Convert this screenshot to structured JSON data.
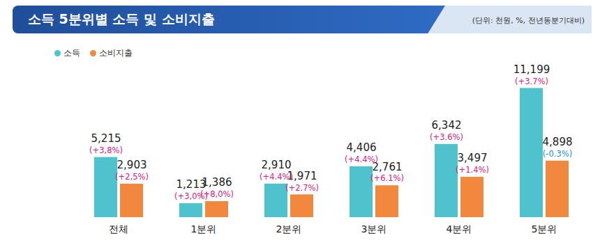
{
  "chart_data": {
    "type": "bar",
    "title": "소득 5분위별 소득 및 소비지출",
    "subtitle": "(단위: 천원, %, 전년동분기대비)",
    "categories": [
      "전체",
      "1분위",
      "2분위",
      "3분위",
      "4분위",
      "5분위"
    ],
    "series": [
      {
        "name": "소득",
        "color": "#4ec3cd",
        "values": [
          5215,
          1213,
          2910,
          4406,
          6342,
          11199
        ],
        "value_labels": [
          "5,215",
          "1,213",
          "2,910",
          "4,406",
          "6,342",
          "11,199"
        ],
        "change_labels": [
          "(+3,8%)",
          "(+3,0%)",
          "(+4.4%)",
          "(+4.4%)",
          "(+3.6%)",
          "(+3.7%)"
        ]
      },
      {
        "name": "소비지출",
        "color": "#f0883e",
        "values": [
          2903,
          1386,
          1971,
          2761,
          3497,
          4898
        ],
        "value_labels": [
          "2,903",
          "1,386",
          "1,971",
          "2,761",
          "3,497",
          "4,898"
        ],
        "change_labels": [
          "(+2,5%)",
          "(+8,0%)",
          "(+2.7%)",
          "(+6.1%)",
          "(+1.4%)",
          "(-0.3%)"
        ]
      }
    ],
    "ylim": [
      0,
      14000
    ],
    "data_labels": true,
    "tick_labels": "x",
    "legend": "top-left"
  }
}
